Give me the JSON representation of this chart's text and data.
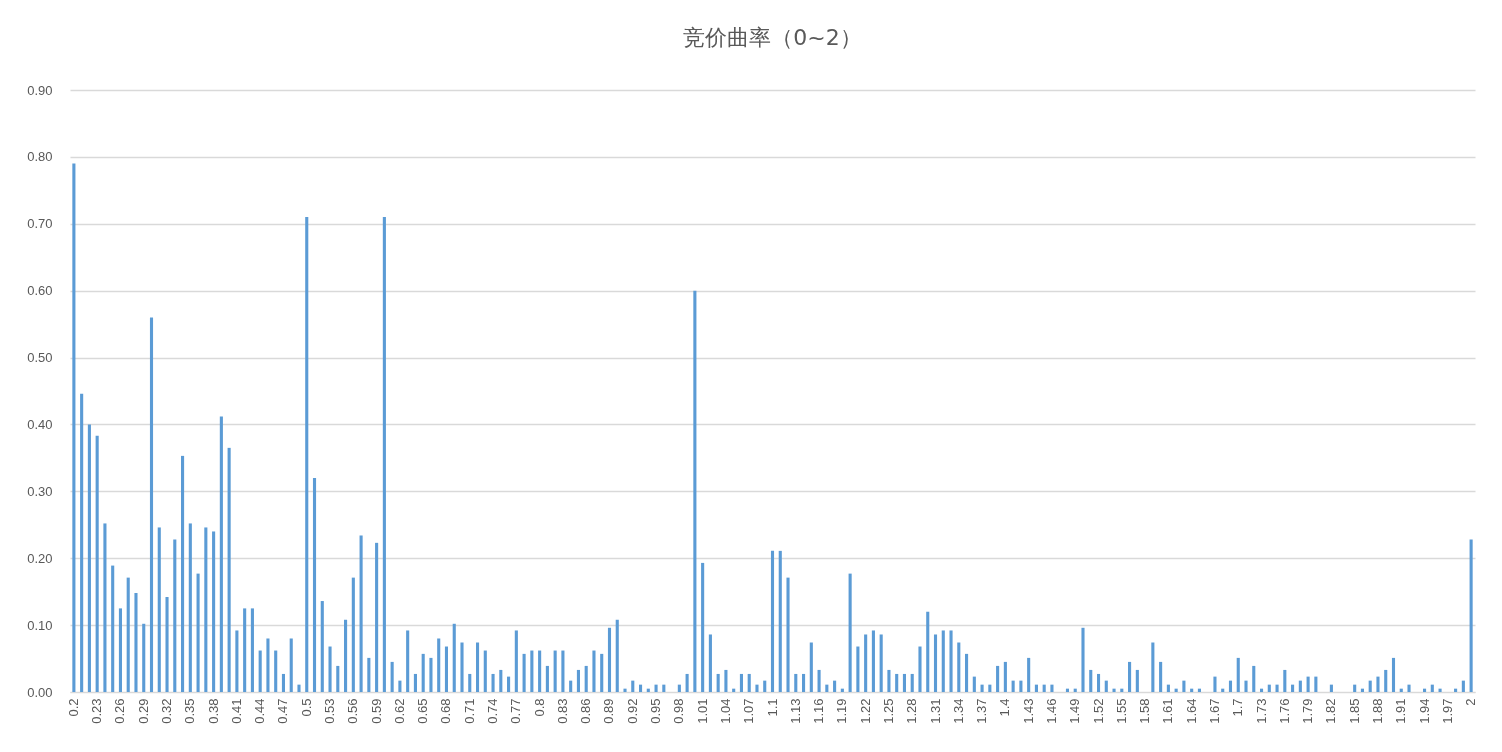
{
  "chart_data": {
    "type": "bar",
    "title": "竞价曲率（0~2）",
    "categories": [
      "0.2",
      null,
      null,
      "0.23",
      null,
      null,
      "0.26",
      null,
      null,
      "0.29",
      null,
      null,
      "0.32",
      null,
      null,
      "0.35",
      null,
      null,
      "0.38",
      null,
      null,
      "0.41",
      null,
      null,
      "0.44",
      null,
      null,
      "0.47",
      null,
      null,
      "0.5",
      null,
      null,
      "0.53",
      null,
      null,
      "0.56",
      null,
      null,
      "0.59",
      null,
      null,
      "0.62",
      null,
      null,
      "0.65",
      null,
      null,
      "0.68",
      null,
      null,
      "0.71",
      null,
      null,
      "0.74",
      null,
      null,
      "0.77",
      null,
      null,
      "0.8",
      null,
      null,
      "0.83",
      null,
      null,
      "0.86",
      null,
      null,
      "0.89",
      null,
      null,
      "0.92",
      null,
      null,
      "0.95",
      null,
      null,
      "0.98",
      null,
      null,
      "1.01",
      null,
      null,
      "1.04",
      null,
      null,
      "1.07",
      null,
      null,
      "1.1",
      null,
      null,
      "1.13",
      null,
      null,
      "1.16",
      null,
      null,
      "1.19",
      null,
      null,
      "1.22",
      null,
      null,
      "1.25",
      null,
      null,
      "1.28",
      null,
      null,
      "1.31",
      null,
      null,
      "1.34",
      null,
      null,
      "1.37",
      null,
      null,
      "1.4",
      null,
      null,
      "1.43",
      null,
      null,
      "1.46",
      null,
      null,
      "1.49",
      null,
      null,
      "1.52",
      null,
      null,
      "1.55",
      null,
      null,
      "1.58",
      null,
      null,
      "1.61",
      null,
      null,
      "1.64",
      null,
      null,
      "1.67",
      null,
      null,
      "1.7",
      null,
      null,
      "1.73",
      null,
      null,
      "1.76",
      null,
      null,
      "1.79",
      null,
      null,
      "1.82",
      null,
      null,
      "1.85",
      null,
      null,
      "1.88",
      null,
      null,
      "1.91",
      null,
      null,
      "1.94",
      null,
      null,
      "1.97",
      null,
      null,
      "2"
    ],
    "values": [
      0.79,
      0.446,
      0.4,
      0.383,
      0.252,
      0.189,
      0.125,
      0.171,
      0.148,
      0.102,
      0.56,
      0.246,
      0.142,
      0.228,
      0.353,
      0.252,
      0.177,
      0.246,
      0.24,
      0.412,
      0.365,
      0.092,
      0.125,
      0.125,
      0.062,
      0.08,
      0.062,
      0.027,
      0.08,
      0.011,
      0.71,
      0.32,
      0.136,
      0.068,
      0.039,
      0.108,
      0.171,
      0.234,
      0.051,
      0.223,
      0.71,
      0.045,
      0.017,
      0.092,
      0.027,
      0.057,
      0.051,
      0.08,
      0.068,
      0.102,
      0.074,
      0.027,
      0.074,
      0.062,
      0.027,
      0.033,
      0.023,
      0.092,
      0.057,
      0.062,
      0.062,
      0.039,
      0.062,
      0.062,
      0.017,
      0.033,
      0.039,
      0.062,
      0.057,
      0.096,
      0.108,
      0.005,
      0.017,
      0.011,
      0.005,
      0.011,
      0.011,
      0,
      0.011,
      0.027,
      0.6,
      0.193,
      0.086,
      0.027,
      0.033,
      0.005,
      0.027,
      0.027,
      0.011,
      0.017,
      0.211,
      0.211,
      0.171,
      0.027,
      0.027,
      0.074,
      0.033,
      0.011,
      0.017,
      0.005,
      0.177,
      0.068,
      0.086,
      0.092,
      0.086,
      0.033,
      0.027,
      0.027,
      0.027,
      0.068,
      0.12,
      0.086,
      0.092,
      0.092,
      0.074,
      0.057,
      0.023,
      0.011,
      0.011,
      0.039,
      0.045,
      0.017,
      0.017,
      0.051,
      0.011,
      0.011,
      0.011,
      0,
      0.005,
      0.005,
      0.096,
      0.033,
      0.027,
      0.017,
      0.005,
      0.005,
      0.045,
      0.033,
      0,
      0.074,
      0.045,
      0.011,
      0.005,
      0.017,
      0.005,
      0.005,
      0,
      0.023,
      0.005,
      0.017,
      0.051,
      0.017,
      0.039,
      0.005,
      0.011,
      0.011,
      0.033,
      0.011,
      0.017,
      0.023,
      0.023,
      0,
      0.011,
      0,
      0,
      0.011,
      0.005,
      0.017,
      0.023,
      0.033,
      0.051,
      0.005,
      0.011,
      0,
      0.005,
      0.011,
      0.005,
      0,
      0.005,
      0.017,
      0.228
    ],
    "color": "#5b9bd5",
    "ylim": [
      0,
      0.9
    ],
    "yticks": [
      {
        "value": 0,
        "label": "0.00"
      },
      {
        "value": 0.1,
        "label": "0.10"
      },
      {
        "value": 0.2,
        "label": "0.20"
      },
      {
        "value": 0.3,
        "label": "0.30"
      },
      {
        "value": 0.4,
        "label": "0.40"
      },
      {
        "value": 0.5,
        "label": "0.50"
      },
      {
        "value": 0.6,
        "label": "0.60"
      },
      {
        "value": 0.7,
        "label": "0.70"
      },
      {
        "value": 0.8,
        "label": "0.80"
      },
      {
        "value": 0.9,
        "label": "0.90"
      }
    ],
    "grid": "y"
  }
}
